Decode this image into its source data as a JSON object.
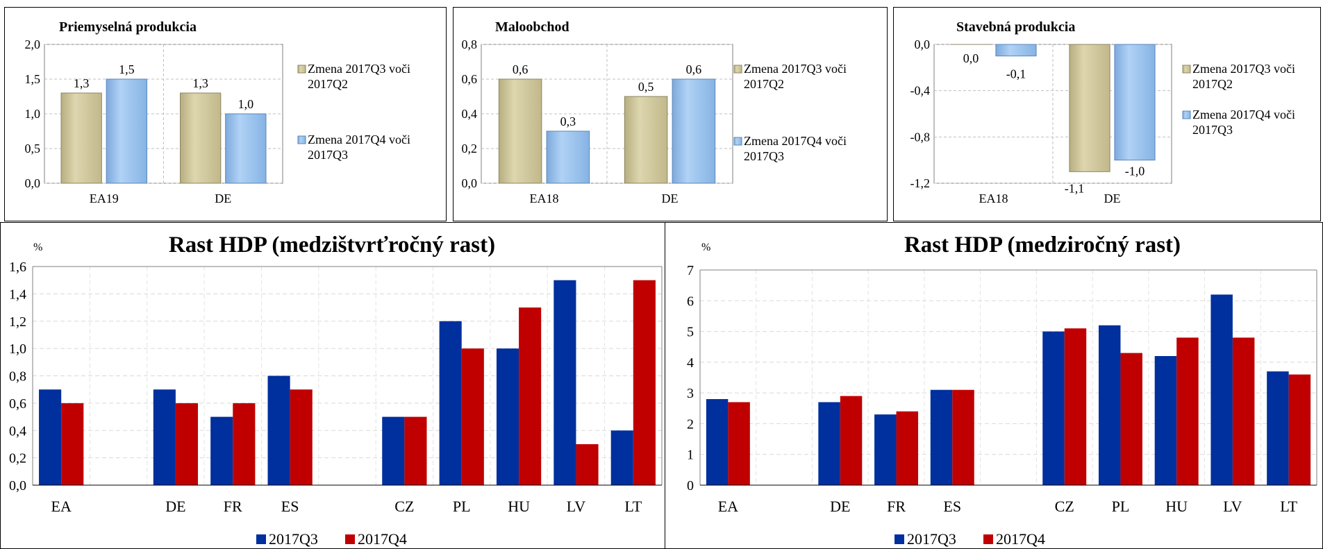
{
  "chart_data": [
    {
      "type": "bar",
      "title": "Priemyselná produkcia",
      "categories": [
        "EA19",
        "DE"
      ],
      "series": [
        {
          "name": "Zmena 2017Q3 voči 2017Q2",
          "values": [
            1.3,
            1.3
          ],
          "labels": [
            "1,3",
            "1,3"
          ]
        },
        {
          "name": "Zmena 2017Q4 voči 2017Q3",
          "values": [
            1.5,
            1.0
          ],
          "labels": [
            "1,5",
            "1,0"
          ]
        }
      ],
      "ylim": [
        0,
        2.0
      ],
      "yticks": [
        0,
        0.5,
        1.0,
        1.5,
        2.0
      ],
      "ytick_labels": [
        "0,0",
        "0,5",
        "1,0",
        "1,5",
        "2,0"
      ],
      "grid": true,
      "legend": "right"
    },
    {
      "type": "bar",
      "title": "Maloobchod",
      "categories": [
        "EA18",
        "DE"
      ],
      "series": [
        {
          "name": "Zmena 2017Q3 voči 2017Q2",
          "values": [
            0.6,
            0.5
          ],
          "labels": [
            "0,6",
            "0,5"
          ]
        },
        {
          "name": "Zmena 2017Q4 voči 2017Q3",
          "values": [
            0.3,
            0.6
          ],
          "labels": [
            "0,3",
            "0,6"
          ]
        }
      ],
      "ylim": [
        0,
        0.8
      ],
      "yticks": [
        0,
        0.2,
        0.4,
        0.6,
        0.8
      ],
      "ytick_labels": [
        "0,0",
        "0,2",
        "0,4",
        "0,6",
        "0,8"
      ],
      "grid": true,
      "legend": "right"
    },
    {
      "type": "bar",
      "title": "Stavebná produkcia",
      "categories": [
        "EA18",
        "DE"
      ],
      "series": [
        {
          "name": "Zmena 2017Q3 voči 2017Q2",
          "values": [
            0.0,
            -1.1
          ],
          "labels": [
            "0,0",
            "-1,1"
          ]
        },
        {
          "name": "Zmena 2017Q4 voči 2017Q3",
          "values": [
            -0.1,
            -1.0
          ],
          "labels": [
            "-0,1",
            "-1,0"
          ]
        }
      ],
      "ylim": [
        -1.2,
        0
      ],
      "yticks": [
        0,
        -0.4,
        -0.8,
        -1.2
      ],
      "ytick_labels": [
        "0,0",
        "-0,4",
        "-0,8",
        "-1,2"
      ],
      "grid": true,
      "legend": "right"
    },
    {
      "type": "bar",
      "title": "Rast HDP (medzištvrťročný rast)",
      "ylabel": "%",
      "categories": [
        "EA",
        "",
        "DE",
        "FR",
        "ES",
        "",
        "CZ",
        "PL",
        "HU",
        "LV",
        "LT"
      ],
      "series": [
        {
          "name": "2017Q3",
          "values": [
            0.7,
            null,
            0.7,
            0.5,
            0.8,
            null,
            0.5,
            1.2,
            1.0,
            1.5,
            0.4
          ]
        },
        {
          "name": "2017Q4",
          "values": [
            0.6,
            null,
            0.6,
            0.6,
            0.7,
            null,
            0.5,
            1.0,
            1.3,
            0.3,
            1.5
          ]
        }
      ],
      "ylim": [
        0,
        1.6
      ],
      "yticks": [
        0,
        0.2,
        0.4,
        0.6,
        0.8,
        1.0,
        1.2,
        1.4,
        1.6
      ],
      "ytick_labels": [
        "0,0",
        "0,2",
        "0,4",
        "0,6",
        "0,8",
        "1,0",
        "1,2",
        "1,4",
        "1,6"
      ],
      "grid": true,
      "legend": "bottom"
    },
    {
      "type": "bar",
      "title": "Rast HDP (medziročný rast)",
      "ylabel": "%",
      "categories": [
        "EA",
        "",
        "DE",
        "FR",
        "ES",
        "",
        "CZ",
        "PL",
        "HU",
        "LV",
        "LT"
      ],
      "series": [
        {
          "name": "2017Q3",
          "values": [
            2.8,
            null,
            2.7,
            2.3,
            3.1,
            null,
            5.0,
            5.2,
            4.2,
            6.2,
            3.7
          ]
        },
        {
          "name": "2017Q4",
          "values": [
            2.7,
            null,
            2.9,
            2.4,
            3.1,
            null,
            5.1,
            4.3,
            4.8,
            4.8,
            3.6
          ]
        }
      ],
      "ylim": [
        0,
        7
      ],
      "yticks": [
        0,
        1,
        2,
        3,
        4,
        5,
        6,
        7
      ],
      "ytick_labels": [
        "0",
        "1",
        "2",
        "3",
        "4",
        "5",
        "6",
        "7"
      ],
      "grid": true,
      "legend": "bottom"
    }
  ],
  "colors": {
    "q3_bar": "#d6cfa4",
    "q4_bar": "#9ec5ee",
    "gdp_q3": "#002f9e",
    "gdp_q4": "#c00000"
  }
}
